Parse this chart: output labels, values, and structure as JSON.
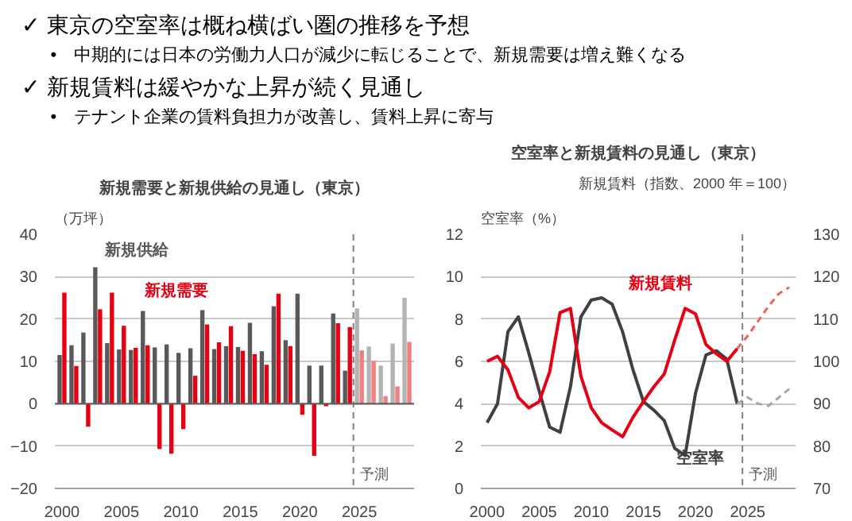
{
  "chart_data": [
    {
      "type": "other",
      "annotations": [
        "✓ 東京の空室率は概ね横ばい圏の推移を予想",
        "•　中期的には日本の労働力人口が減少に転じることで、新規需要は増え難くなる",
        "✓ 新規賃料は緩やかな上昇が続く見通し",
        "•　テナント企業の賃料負担力が改善し、賃料上昇に寄与"
      ]
    },
    {
      "type": "bar",
      "title": "新規需要と新規供給の見通し（東京）",
      "ylabel": "（万坪）",
      "x": [
        2000,
        2001,
        2002,
        2003,
        2004,
        2005,
        2006,
        2007,
        2008,
        2009,
        2010,
        2011,
        2012,
        2013,
        2014,
        2015,
        2016,
        2017,
        2018,
        2019,
        2020,
        2021,
        2022,
        2023,
        2024,
        2025,
        2026,
        2027,
        2028,
        2029
      ],
      "series": [
        {
          "name": "新規供給",
          "color": "#595959",
          "colors": [
            "#595959",
            "#595959",
            "#595959",
            "#595959",
            "#595959",
            "#595959",
            "#595959",
            "#595959",
            "#595959",
            "#595959",
            "#595959",
            "#595959",
            "#595959",
            "#595959",
            "#595959",
            "#595959",
            "#595959",
            "#595959",
            "#595959",
            "#595959",
            "#595959",
            "#595959",
            "#595959",
            "#595959",
            "#595959",
            "#b3b3b3",
            "#b3b3b3",
            "#b3b3b3",
            "#b3b3b3",
            "#b3b3b3"
          ],
          "values": [
            11.5,
            13.8,
            16.8,
            32.2,
            14.3,
            12.8,
            12.7,
            21.9,
            13.3,
            14,
            12,
            13.1,
            22.1,
            12.9,
            13.6,
            13.4,
            19.1,
            12.4,
            23,
            15,
            26,
            9,
            9,
            21.3,
            7.8,
            22.5,
            13.5,
            9,
            14.2,
            25
          ]
        },
        {
          "name": "新規需要",
          "color": "#e60012",
          "colors": [
            "#e60012",
            "#e60012",
            "#e60012",
            "#e60012",
            "#e60012",
            "#e60012",
            "#e60012",
            "#e60012",
            "#e60012",
            "#e60012",
            "#e60012",
            "#e60012",
            "#e60012",
            "#e60012",
            "#e60012",
            "#e60012",
            "#e60012",
            "#e60012",
            "#e60012",
            "#e60012",
            "#e60012",
            "#e60012",
            "#e60012",
            "#e60012",
            "#e60012",
            "#f08080",
            "#f08080",
            "#f08080",
            "#f08080",
            "#f08080"
          ],
          "values": [
            26.2,
            8.9,
            -5.4,
            22.3,
            26.2,
            18.4,
            13.2,
            13.8,
            -10.7,
            -11.8,
            -6,
            6.6,
            18.7,
            14.5,
            18.3,
            12.5,
            11.7,
            9.2,
            26,
            13.6,
            -2.6,
            -12.3,
            -0.6,
            19,
            18.1,
            12.6,
            10.1,
            1.8,
            4.1,
            14.6
          ]
        }
      ],
      "xlim": [
        1999.4,
        2029.6
      ],
      "xticks": [
        2000,
        2005,
        2010,
        2015,
        2020,
        2025
      ],
      "ylim": [
        -20,
        40
      ],
      "yticks": [
        -20,
        -10,
        0,
        10,
        20,
        30,
        40
      ],
      "ref_lines": [
        {
          "axis": "x",
          "value": 2024.5,
          "label": "予測",
          "color": "#808080",
          "line_style": "dashed"
        }
      ],
      "grid": "y"
    },
    {
      "type": "line",
      "title": "空室率と新規賃料の見通し（東京）",
      "ylabel": "空室率（%）",
      "y2label": "新規賃料（指数、2000 年＝100）",
      "series": [
        {
          "name": "空室率",
          "color": "#404040",
          "x": [
            2000,
            2001,
            2002,
            2003,
            2004,
            2005,
            2006,
            2007,
            2008,
            2009,
            2010,
            2011,
            2012,
            2013,
            2014,
            2015,
            2016,
            2017,
            2018,
            2019,
            2020,
            2021,
            2022,
            2023,
            2024
          ],
          "values": [
            3.1,
            4.0,
            7.4,
            8.1,
            6.4,
            4.6,
            2.9,
            2.65,
            4.8,
            8.1,
            8.9,
            9.0,
            8.7,
            7.4,
            5.6,
            4.1,
            3.7,
            3.2,
            1.9,
            1.55,
            4.5,
            6.3,
            6.5,
            6.1,
            4.0
          ]
        },
        {
          "color": "#a6a6a6",
          "line_style": "dashed",
          "x": [
            2024,
            2025,
            2026,
            2027,
            2028,
            2029
          ],
          "values": [
            4.0,
            4.3,
            4.0,
            3.9,
            4.3,
            4.7
          ]
        },
        {
          "name": "新規賃料",
          "color": "#e60012",
          "axis": "y2",
          "x": [
            2000,
            2001,
            2002,
            2003,
            2004,
            2005,
            2006,
            2007,
            2008,
            2009,
            2010,
            2011,
            2012,
            2013,
            2014,
            2015,
            2016,
            2017,
            2018,
            2019,
            2020,
            2021,
            2022,
            2023,
            2024
          ],
          "values": [
            100,
            101.2,
            98,
            91.5,
            89,
            90.5,
            97.5,
            111.5,
            112.5,
            96.5,
            89,
            85.5,
            83.8,
            82.2,
            86.8,
            90.5,
            94,
            97,
            105,
            112.5,
            111.2,
            104,
            101.8,
            100,
            103
          ]
        },
        {
          "color": "#f06060",
          "axis": "y2",
          "line_style": "dashed",
          "x": [
            2024,
            2025,
            2026,
            2027,
            2028,
            2029
          ],
          "values": [
            103,
            106,
            109.5,
            113,
            116,
            117.5
          ]
        }
      ],
      "xlim": [
        1999.4,
        2029.6
      ],
      "xticks": [
        2000,
        2005,
        2010,
        2015,
        2020,
        2025
      ],
      "ylim": [
        0,
        12
      ],
      "yticks": [
        0,
        2,
        4,
        6,
        8,
        10,
        12
      ],
      "y2lim": [
        70,
        130
      ],
      "y2ticks": [
        70,
        80,
        90,
        100,
        110,
        120,
        130
      ],
      "ref_lines": [
        {
          "axis": "x",
          "value": 2024.5,
          "label": "予測",
          "color": "#808080",
          "line_style": "dashed"
        }
      ],
      "grid": "y",
      "marker": "none"
    }
  ]
}
